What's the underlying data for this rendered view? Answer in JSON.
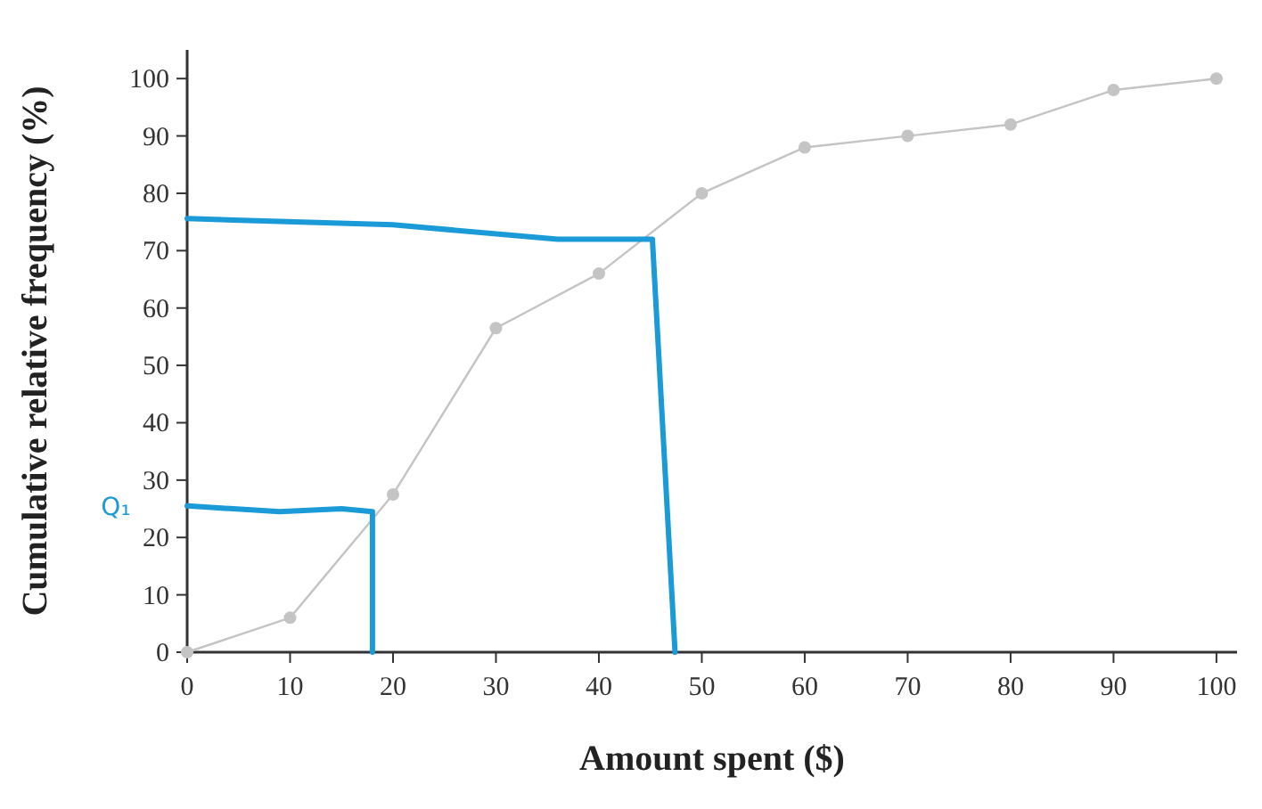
{
  "chart_data": {
    "type": "line",
    "xlabel": "Amount spent ($)",
    "ylabel": "Cumulative relative frequency (%)",
    "xlim": [
      0,
      102
    ],
    "ylim": [
      0,
      105
    ],
    "xticks": [
      0,
      10,
      20,
      30,
      40,
      50,
      60,
      70,
      80,
      90,
      100
    ],
    "yticks": [
      0,
      10,
      20,
      30,
      40,
      50,
      60,
      70,
      80,
      90,
      100
    ],
    "grid": false,
    "series": [
      {
        "color": "#c4c4c4",
        "marker": "circle",
        "x": [
          0,
          10,
          20,
          30,
          40,
          50,
          60,
          70,
          80,
          90,
          100
        ],
        "values": [
          0,
          6,
          27.5,
          56.5,
          66,
          80,
          88,
          90,
          92,
          98,
          100
        ]
      },
      {
        "color": "#1a9ad6",
        "marker": "none",
        "x": [
          0,
          9,
          15,
          18,
          18
        ],
        "values": [
          25.5,
          24.5,
          25,
          24.5,
          0
        ]
      },
      {
        "color": "#1a9ad6",
        "marker": "none",
        "x": [
          0,
          20,
          36,
          45.2,
          47.4
        ],
        "values": [
          75.6,
          74.5,
          72,
          72,
          0
        ]
      }
    ],
    "annotations": [
      "Q₁"
    ]
  }
}
